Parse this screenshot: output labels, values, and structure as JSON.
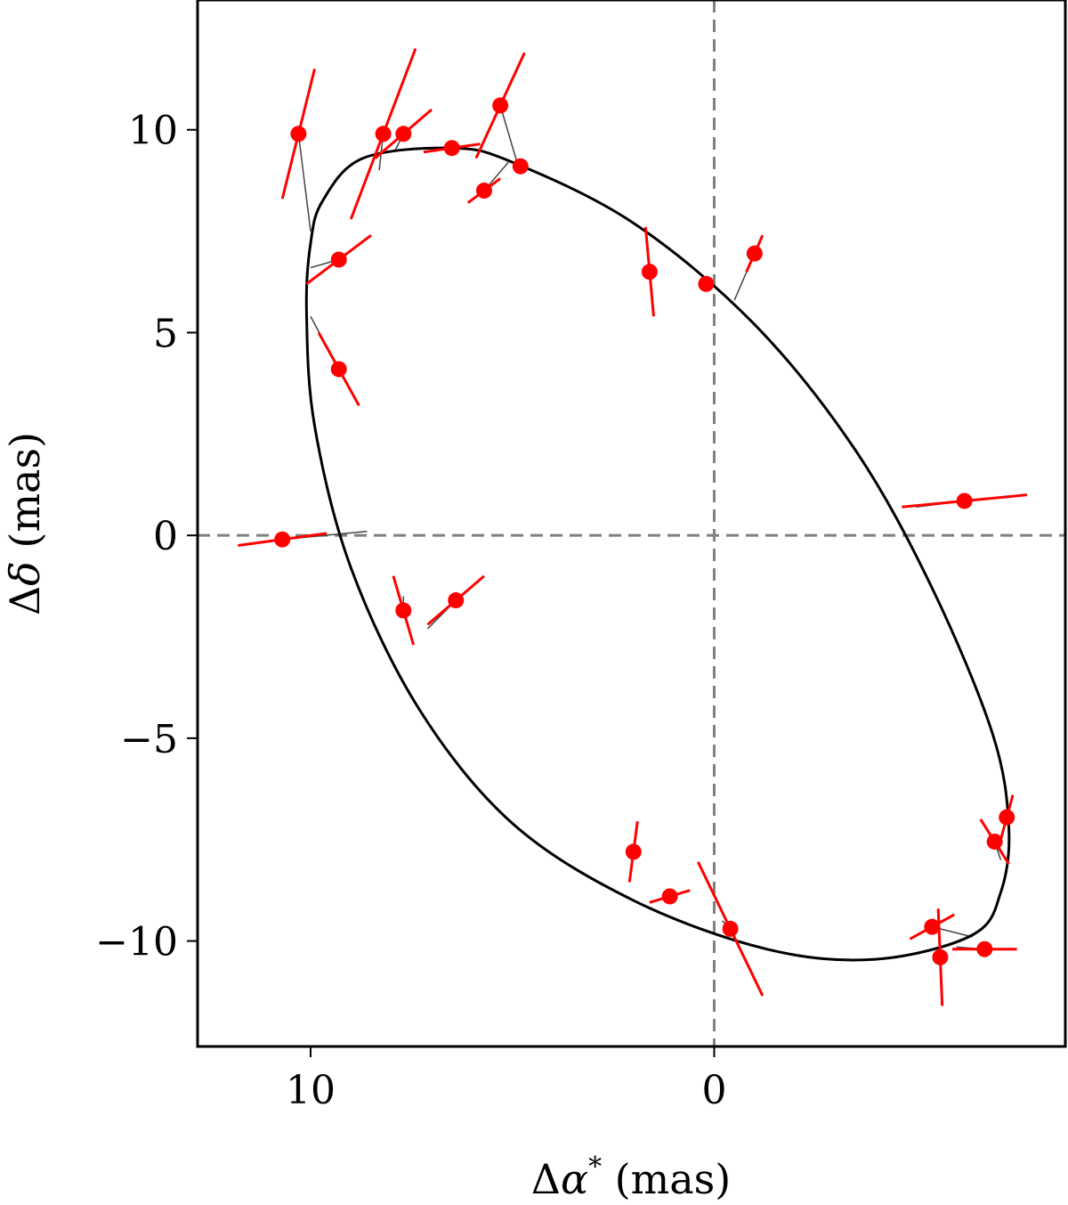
{
  "chart_data": {
    "type": "scatter",
    "xlabel_parts": [
      "Δ",
      "α",
      "*",
      " (mas)"
    ],
    "ylabel_parts": [
      "Δ",
      "δ",
      " (mas)"
    ],
    "xlim": [
      12.8,
      -8.7
    ],
    "ylim": [
      -12.6,
      13.2
    ],
    "x_inverted": true,
    "xticks": [
      10,
      0
    ],
    "xtick_labels": [
      "10",
      "0"
    ],
    "yticks": [
      10,
      5,
      0,
      -5,
      -10
    ],
    "ytick_labels": [
      "10",
      "5",
      "0",
      "−5",
      "−10"
    ],
    "reference_lines": [
      {
        "axis": "x",
        "value": 0,
        "style": "dashed",
        "color": "#808080"
      },
      {
        "axis": "y",
        "value": 0,
        "style": "dashed",
        "color": "#808080"
      }
    ],
    "orbit": {
      "color": "#000000",
      "points": [
        [
          8.7,
          9.3
        ],
        [
          6.5,
          9.55
        ],
        [
          5.0,
          9.2
        ],
        [
          2.0,
          7.7
        ],
        [
          -1.0,
          5.2
        ],
        [
          -3.5,
          2.1
        ],
        [
          -5.4,
          -1.3
        ],
        [
          -6.9,
          -4.9
        ],
        [
          -7.3,
          -7.2
        ],
        [
          -7.1,
          -8.8
        ],
        [
          -6.4,
          -9.85
        ],
        [
          -4.0,
          -10.45
        ],
        [
          -1.3,
          -10.2
        ],
        [
          2.0,
          -9.0
        ],
        [
          5.0,
          -7.1
        ],
        [
          7.3,
          -4.3
        ],
        [
          9.0,
          -0.8
        ],
        [
          9.9,
          2.7
        ],
        [
          10.1,
          5.5
        ],
        [
          10.0,
          7.2
        ],
        [
          9.7,
          8.25
        ],
        [
          8.7,
          9.3
        ]
      ]
    },
    "series": [
      {
        "color": "#ff0000",
        "points": [
          {
            "x": 10.3,
            "y": 9.9,
            "ex": -0.4,
            "ey": 1.6,
            "px": 10.0,
            "py": 7.5
          },
          {
            "x": 8.2,
            "y": 9.9,
            "ex": -0.8,
            "ey": 2.1,
            "px": 8.3,
            "py": 9.0
          },
          {
            "x": 7.7,
            "y": 9.9,
            "ex": -0.7,
            "ey": 0.6,
            "px": 7.9,
            "py": 9.5
          },
          {
            "x": 6.5,
            "y": 9.55,
            "ex": -0.7,
            "ey": 0.1,
            "px": 6.5,
            "py": 9.55
          },
          {
            "x": 5.3,
            "y": 10.6,
            "ex": -0.6,
            "ey": 1.3,
            "px": 4.9,
            "py": 9.25
          },
          {
            "x": 5.7,
            "y": 8.5,
            "ex": -0.4,
            "ey": 0.3,
            "px": 5.1,
            "py": 9.2
          },
          {
            "x": 4.8,
            "y": 9.1,
            "ex": 0.0,
            "ey": 0.0,
            "px": 4.8,
            "py": 9.1
          },
          {
            "x": 9.3,
            "y": 6.8,
            "ex": -0.8,
            "ey": 0.6,
            "px": 10.0,
            "py": 6.6
          },
          {
            "x": 9.3,
            "y": 4.1,
            "ex": -0.5,
            "ey": -0.9,
            "px": 10.0,
            "py": 5.4
          },
          {
            "x": 1.6,
            "y": 6.5,
            "ex": 0.1,
            "ey": 1.1,
            "px": 1.6,
            "py": 6.5
          },
          {
            "x": 0.2,
            "y": 6.2,
            "ex": 0.0,
            "ey": 0.0,
            "px": 0.2,
            "py": 6.2
          },
          {
            "x": -1.0,
            "y": 6.95,
            "ex": -0.2,
            "ey": 0.45,
            "px": -0.5,
            "py": 5.8
          },
          {
            "x": -6.2,
            "y": 0.85,
            "ex": -1.55,
            "ey": 0.15,
            "px": -5.0,
            "py": 0.7
          },
          {
            "x": 10.7,
            "y": -0.1,
            "ex": -1.1,
            "ey": 0.15,
            "px": 8.6,
            "py": 0.1
          },
          {
            "x": 7.7,
            "y": -1.85,
            "ex": -0.25,
            "ey": -0.85,
            "px": 7.7,
            "py": -1.5
          },
          {
            "x": 6.4,
            "y": -1.6,
            "ex": -0.7,
            "ey": 0.6,
            "px": 7.1,
            "py": -2.3
          },
          {
            "x": 2.0,
            "y": -7.8,
            "ex": -0.1,
            "ey": 0.75,
            "px": 2.1,
            "py": -7.9
          },
          {
            "x": 1.1,
            "y": -8.9,
            "ex": -0.5,
            "ey": 0.15,
            "px": 1.2,
            "py": -8.8
          },
          {
            "x": -0.4,
            "y": -9.7,
            "ex": -0.8,
            "ey": -1.65,
            "px": -0.2,
            "py": -9.5
          },
          {
            "x": -5.4,
            "y": -9.65,
            "ex": -0.55,
            "ey": 0.3,
            "px": -6.4,
            "py": -9.9
          },
          {
            "x": -5.6,
            "y": -10.4,
            "ex": -0.05,
            "ey": -1.2,
            "px": -5.6,
            "py": -10.3
          },
          {
            "x": -6.7,
            "y": -10.2,
            "ex": -0.8,
            "ey": 0.0,
            "px": -6.0,
            "py": -10.15
          },
          {
            "x": -6.95,
            "y": -7.55,
            "ex": -0.35,
            "ey": -0.55,
            "px": -7.1,
            "py": -8.0
          },
          {
            "x": -7.25,
            "y": -6.95,
            "ex": -0.15,
            "ey": 0.55,
            "px": -7.3,
            "py": -7.2
          }
        ]
      }
    ]
  }
}
